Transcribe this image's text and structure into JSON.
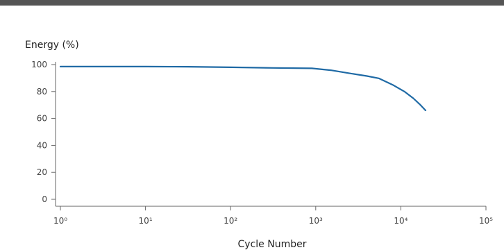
{
  "chart_data": {
    "type": "line",
    "title": "",
    "ylabel": "Energy (%)",
    "xlabel": "Cycle Number",
    "xscale": "log",
    "xlim": [
      1,
      100000
    ],
    "ylim": [
      0,
      100
    ],
    "xticks": [
      1,
      10,
      100,
      1000,
      10000,
      100000
    ],
    "xtick_labels": [
      "10⁰",
      "10¹",
      "10²",
      "10³",
      "10⁴",
      "10⁵"
    ],
    "yticks": [
      0,
      20,
      40,
      60,
      80,
      100
    ],
    "ytick_labels": [
      "0",
      "20",
      "40",
      "60",
      "80",
      "100"
    ],
    "grid": false,
    "series": [
      {
        "color": "#1f6aa5",
        "x": [
          1,
          10,
          31.6,
          100,
          316,
          900,
          1500,
          2500,
          4000,
          5500,
          8000,
          11000,
          14000,
          17000,
          19500
        ],
        "y": [
          98.5,
          98.5,
          98.4,
          98,
          97.5,
          97.2,
          95.8,
          93.5,
          91.5,
          89.8,
          85,
          80,
          75,
          70,
          66
        ]
      }
    ]
  }
}
